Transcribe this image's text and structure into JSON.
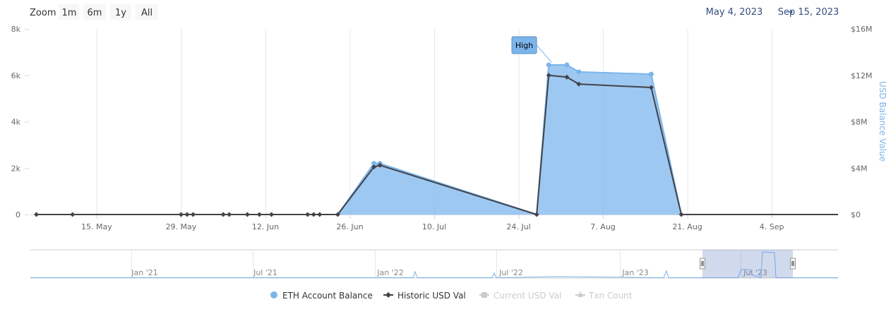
{
  "zoom": {
    "label": "Zoom",
    "buttons": [
      "1m",
      "6m",
      "1y",
      "All"
    ]
  },
  "range": {
    "from": "May 4, 2023",
    "arrow": "→",
    "to": "Sep 15, 2023"
  },
  "tooltip": {
    "label": "High"
  },
  "navigator": {
    "labels": [
      "Jan '21",
      "Jul '21",
      "Jan '22",
      "Jul '22",
      "Jan '23",
      "Jul '23"
    ]
  },
  "legend": {
    "items": [
      {
        "label": "ETH Account Balance",
        "active": true,
        "color": "#7cb5ec",
        "symbol": "circle"
      },
      {
        "label": "Historic USD Val",
        "active": true,
        "color": "#434348",
        "symbol": "diamond"
      },
      {
        "label": "Current USD Val",
        "active": false,
        "color": "#cccccc",
        "symbol": "square"
      },
      {
        "label": "Txn Count",
        "active": false,
        "color": "#cccccc",
        "symbol": "triangle"
      }
    ]
  },
  "chart_data": {
    "type": "area",
    "xlabel": "",
    "x_ticks": [
      "15. May",
      "29. May",
      "12. Jun",
      "26. Jun",
      "10. Jul",
      "24. Jul",
      "7. Aug",
      "21. Aug",
      "4. Sep"
    ],
    "y_left": {
      "label": "",
      "ticks": [
        "0",
        "2k",
        "4k",
        "6k",
        "8k"
      ],
      "range": [
        0,
        8000
      ]
    },
    "y_right": {
      "label": "USD Balance Value",
      "ticks": [
        "$0",
        "$4M",
        "$8M",
        "$12M",
        "$16M"
      ],
      "range": [
        0,
        16000000
      ]
    },
    "grid": "vertical",
    "colors": {
      "eth": "#7cb5ec",
      "usd": "#434348",
      "tooltip_bg": "#7cb5ec",
      "right_axis": "#7cb5ec"
    },
    "x_range": [
      "2023-05-04",
      "2023-09-15"
    ],
    "series": [
      {
        "name": "ETH Account Balance",
        "type": "area",
        "axis": "left",
        "points": [
          [
            "2023-05-05",
            0
          ],
          [
            "2023-05-11",
            0
          ],
          [
            "2023-05-29",
            0
          ],
          [
            "2023-05-30",
            0
          ],
          [
            "2023-05-31",
            0
          ],
          [
            "2023-06-05",
            0
          ],
          [
            "2023-06-06",
            0
          ],
          [
            "2023-06-09",
            0
          ],
          [
            "2023-06-11",
            0
          ],
          [
            "2023-06-13",
            0
          ],
          [
            "2023-06-19",
            0
          ],
          [
            "2023-06-20",
            0
          ],
          [
            "2023-06-21",
            0
          ],
          [
            "2023-06-24",
            0
          ],
          [
            "2023-06-30",
            2200
          ],
          [
            "2023-07-01",
            2200
          ],
          [
            "2023-07-27",
            0
          ],
          [
            "2023-07-29",
            6450
          ],
          [
            "2023-08-01",
            6450
          ],
          [
            "2023-08-03",
            6150
          ],
          [
            "2023-08-15",
            6050
          ],
          [
            "2023-08-20",
            0
          ],
          [
            "2023-09-15",
            0
          ]
        ]
      },
      {
        "name": "Historic USD Val",
        "type": "line",
        "axis": "right",
        "points": [
          [
            "2023-05-05",
            0
          ],
          [
            "2023-05-11",
            0
          ],
          [
            "2023-05-29",
            0
          ],
          [
            "2023-05-30",
            0
          ],
          [
            "2023-05-31",
            0
          ],
          [
            "2023-06-05",
            0
          ],
          [
            "2023-06-06",
            0
          ],
          [
            "2023-06-09",
            0
          ],
          [
            "2023-06-11",
            0
          ],
          [
            "2023-06-13",
            0
          ],
          [
            "2023-06-19",
            0
          ],
          [
            "2023-06-20",
            0
          ],
          [
            "2023-06-21",
            0
          ],
          [
            "2023-06-24",
            0
          ],
          [
            "2023-06-30",
            4100000
          ],
          [
            "2023-07-01",
            4250000
          ],
          [
            "2023-07-27",
            0
          ],
          [
            "2023-07-29",
            12000000
          ],
          [
            "2023-08-01",
            11850000
          ],
          [
            "2023-08-03",
            11250000
          ],
          [
            "2023-08-15",
            10950000
          ],
          [
            "2023-08-20",
            0
          ]
        ]
      }
    ]
  }
}
